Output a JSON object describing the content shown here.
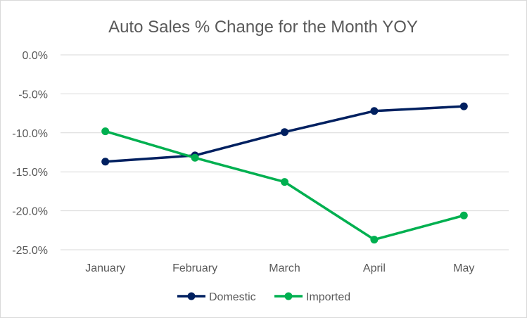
{
  "chart_data": {
    "type": "line",
    "title": "Auto Sales % Change for the Month YOY",
    "categories": [
      "January",
      "February",
      "March",
      "April",
      "May"
    ],
    "series": [
      {
        "name": "Domestic",
        "values": [
          -13.7,
          -12.9,
          -9.9,
          -7.2,
          -6.6
        ],
        "color": "#002060"
      },
      {
        "name": "Imported",
        "values": [
          -9.8,
          -13.2,
          -16.3,
          -23.7,
          -20.6
        ],
        "color": "#00B050"
      }
    ],
    "ylim": [
      -25,
      0
    ],
    "yticks": [
      0,
      -5,
      -10,
      -15,
      -20,
      -25
    ],
    "ytick_labels": [
      "0.0%",
      "-5.0%",
      "-10.0%",
      "-15.0%",
      "-20.0%",
      "-25.0%"
    ],
    "grid": true,
    "legend": "bottom"
  }
}
